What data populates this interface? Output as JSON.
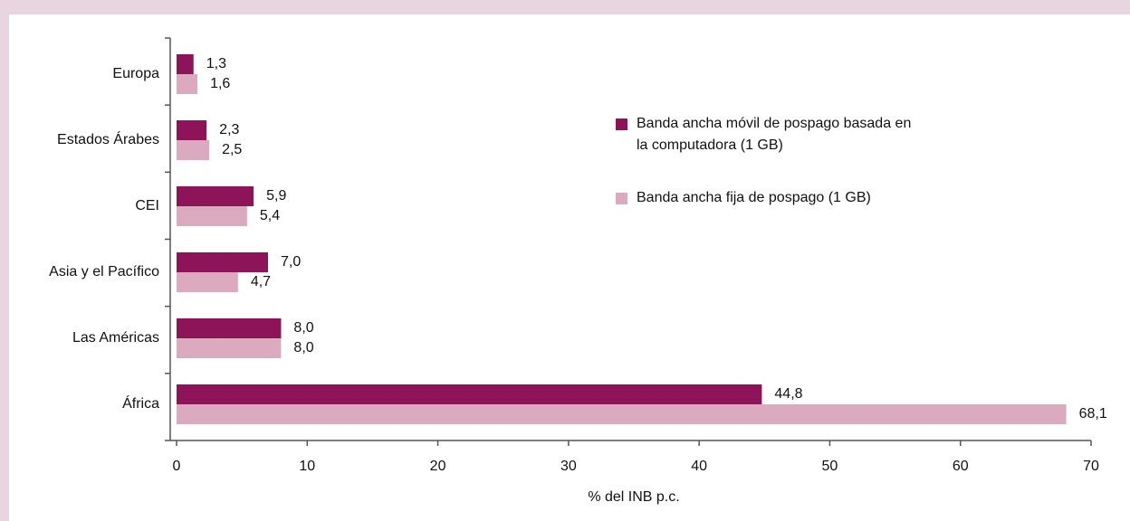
{
  "chart_data": {
    "type": "bar",
    "orientation": "horizontal",
    "categories": [
      "Europa",
      "Estados Árabes",
      "CEI",
      "Asia y el Pacífico",
      "Las Américas",
      "África"
    ],
    "series": [
      {
        "name": "Banda ancha móvil de pospago basada en la computadora (1 GB)",
        "color": "#8e1459",
        "values": [
          1.3,
          2.3,
          5.9,
          7.0,
          8.0,
          44.8
        ],
        "value_labels": [
          "1,3",
          "2,3",
          "5,9",
          "7,0",
          "8,0",
          "44,8"
        ]
      },
      {
        "name": "Banda ancha fija de pospago (1 GB)",
        "color": "#dcaabe",
        "values": [
          1.6,
          2.5,
          5.4,
          4.7,
          8.0,
          68.1
        ],
        "value_labels": [
          "1,6",
          "2,5",
          "5,4",
          "4,7",
          "8,0",
          "68,1"
        ]
      }
    ],
    "xlabel": "% del INB p.c.",
    "xlim": [
      0,
      70
    ],
    "xticks": [
      0,
      10,
      20,
      30,
      40,
      50,
      60,
      70
    ]
  }
}
